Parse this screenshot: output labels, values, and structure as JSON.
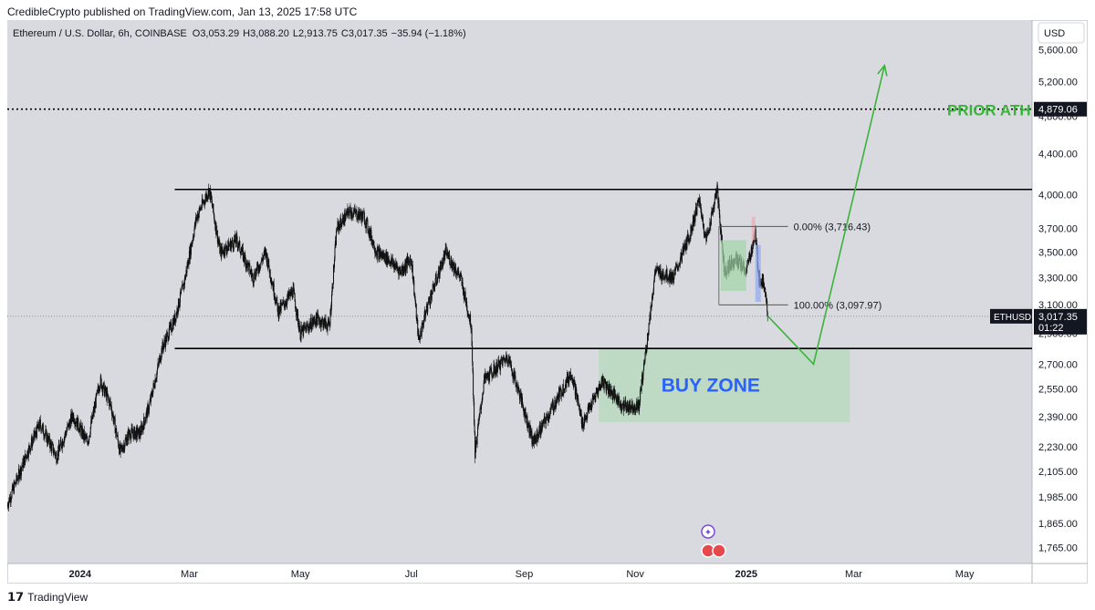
{
  "header": {
    "published": "CredibleCrypto published on TradingView.com, Jan 13, 2025 17:58 UTC"
  },
  "footer": {
    "brand": "TradingView"
  },
  "currency": "USD",
  "colors": {
    "plot_bg": "#d9dadf",
    "candle": "#111111",
    "buy_zone": "#b9d8bf",
    "buy_zone_text": "#2962ff",
    "arrow": "#3bb33b",
    "prior_ath_text": "#3bb33b",
    "range_box_green": "#9fd4a6",
    "range_box_blue": "#8fa8f0",
    "range_box_red": "#f0a8b0"
  },
  "chart_data": {
    "type": "candlestick",
    "title": "Ethereum / U.S. Dollar, 6h, COINBASE",
    "ohlc_header": {
      "o_label": "O",
      "o": "3,053.29",
      "h_label": "H",
      "h": "3,088.20",
      "l_label": "L",
      "l": "2,913.75",
      "c_label": "C",
      "c": "3,017.35",
      "change": "−35.94 (−1.18%)"
    },
    "y_scale": "log",
    "ylim": [
      1700,
      6000
    ],
    "y_ticks": [
      "5,600.00",
      "5,200.00",
      "4,800.00",
      "4,400.00",
      "4,000.00",
      "3,700.00",
      "3,500.00",
      "3,300.00",
      "3,100.00",
      "2,900.00",
      "2,700.00",
      "2,550.00",
      "2,390.00",
      "2,230.00",
      "2,105.00",
      "1,985.00",
      "1,865.00",
      "1,765.00"
    ],
    "x_ticks": [
      "2024",
      "Mar",
      "May",
      "Jul",
      "Sep",
      "Nov",
      "2025",
      "Mar",
      "May"
    ],
    "x_tick_dates": [
      "2024-01-01",
      "2024-03-01",
      "2024-05-01",
      "2024-07-01",
      "2024-09-01",
      "2024-11-01",
      "2025-01-01",
      "2025-03-01",
      "2025-05-01"
    ],
    "series": [
      {
        "name": "ETHUSD",
        "points": [
          [
            "2023-11-22",
            1950
          ],
          [
            "2023-12-03",
            2200
          ],
          [
            "2023-12-10",
            2350
          ],
          [
            "2023-12-19",
            2180
          ],
          [
            "2023-12-28",
            2400
          ],
          [
            "2024-01-05",
            2250
          ],
          [
            "2024-01-12",
            2600
          ],
          [
            "2024-01-18",
            2450
          ],
          [
            "2024-01-23",
            2200
          ],
          [
            "2024-01-28",
            2300
          ],
          [
            "2024-02-03",
            2300
          ],
          [
            "2024-02-08",
            2450
          ],
          [
            "2024-02-15",
            2800
          ],
          [
            "2024-02-22",
            3000
          ],
          [
            "2024-02-27",
            3250
          ],
          [
            "2024-03-05",
            3800
          ],
          [
            "2024-03-12",
            4050
          ],
          [
            "2024-03-18",
            3500
          ],
          [
            "2024-03-27",
            3600
          ],
          [
            "2024-04-05",
            3300
          ],
          [
            "2024-04-12",
            3500
          ],
          [
            "2024-04-19",
            3050
          ],
          [
            "2024-04-27",
            3200
          ],
          [
            "2024-05-01",
            2900
          ],
          [
            "2024-05-10",
            3000
          ],
          [
            "2024-05-17",
            2950
          ],
          [
            "2024-05-21",
            3700
          ],
          [
            "2024-05-28",
            3850
          ],
          [
            "2024-06-05",
            3800
          ],
          [
            "2024-06-12",
            3500
          ],
          [
            "2024-06-18",
            3450
          ],
          [
            "2024-06-25",
            3350
          ],
          [
            "2024-07-01",
            3450
          ],
          [
            "2024-07-05",
            2850
          ],
          [
            "2024-07-10",
            3100
          ],
          [
            "2024-07-20",
            3500
          ],
          [
            "2024-07-28",
            3300
          ],
          [
            "2024-08-03",
            2950
          ],
          [
            "2024-08-05",
            2200
          ],
          [
            "2024-08-10",
            2600
          ],
          [
            "2024-08-23",
            2750
          ],
          [
            "2024-08-30",
            2500
          ],
          [
            "2024-09-06",
            2250
          ],
          [
            "2024-09-17",
            2450
          ],
          [
            "2024-09-27",
            2650
          ],
          [
            "2024-10-03",
            2350
          ],
          [
            "2024-10-14",
            2600
          ],
          [
            "2024-10-25",
            2450
          ],
          [
            "2024-11-03",
            2450
          ],
          [
            "2024-11-08",
            2900
          ],
          [
            "2024-11-12",
            3350
          ],
          [
            "2024-11-22",
            3300
          ],
          [
            "2024-12-01",
            3650
          ],
          [
            "2024-12-06",
            3950
          ],
          [
            "2024-12-10",
            3600
          ],
          [
            "2024-12-16",
            4050
          ],
          [
            "2024-12-20",
            3350
          ],
          [
            "2024-12-26",
            3450
          ],
          [
            "2025-01-01",
            3350
          ],
          [
            "2025-01-06",
            3650
          ],
          [
            "2025-01-08",
            3300
          ],
          [
            "2025-01-11",
            3250
          ],
          [
            "2025-01-13",
            3017.35
          ]
        ]
      }
    ],
    "annotations": {
      "resistance": 4050,
      "support": 2800,
      "prior_ath": {
        "value": 4879.06,
        "label": "PRIOR ATH",
        "price_label": "4,879.06"
      },
      "fib_0": {
        "value": 3716.43,
        "label": "0.00% (3,716.43)"
      },
      "fib_100": {
        "value": 3097.97,
        "label": "100.00% (3,097.97)"
      },
      "buy_zone": {
        "label": "BUY ZONE",
        "top": 2800,
        "bottom": 2360,
        "start": "2024-10-12",
        "end": "2025-02-27"
      },
      "current_price": {
        "symbol": "ETHUSD",
        "value": "3,017.35",
        "countdown": "01:22"
      },
      "projection": [
        [
          "2025-01-13",
          3017
        ],
        [
          "2025-02-07",
          2700
        ],
        [
          "2025-03-18",
          5400
        ]
      ]
    }
  }
}
